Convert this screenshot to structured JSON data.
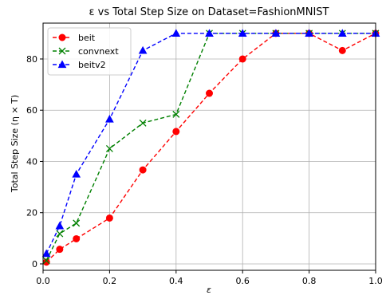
{
  "chart_data": {
    "type": "line",
    "title": "ε vs Total Step Size on Dataset=FashionMNIST",
    "xlabel": "ε",
    "ylabel": "Total Step Size (η × T)",
    "xlim": [
      0.0,
      1.0
    ],
    "ylim": [
      -2.5,
      94
    ],
    "xticks": [
      0.0,
      0.2,
      0.4,
      0.6,
      0.8,
      1.0
    ],
    "xtick_labels": [
      "0.0",
      "0.2",
      "0.4",
      "0.6",
      "0.8",
      "1.0"
    ],
    "yticks": [
      0,
      20,
      40,
      60,
      80
    ],
    "ytick_labels": [
      "0",
      "20",
      "40",
      "60",
      "80"
    ],
    "grid": true,
    "legend_position": "top-left",
    "series": [
      {
        "name": "beit",
        "color": "#ff0000",
        "marker": "circle",
        "x": [
          0.01,
          0.05,
          0.1,
          0.2,
          0.3,
          0.4,
          0.5,
          0.6,
          0.7,
          0.8,
          0.9,
          1.0
        ],
        "y": [
          0.7,
          5.7,
          9.8,
          17.9,
          36.7,
          51.7,
          66.6,
          80.0,
          90.0,
          90.0,
          83.3,
          90.0
        ]
      },
      {
        "name": "convnext",
        "color": "#008000",
        "marker": "x",
        "x": [
          0.01,
          0.05,
          0.1,
          0.2,
          0.3,
          0.4,
          0.5,
          0.6,
          0.7,
          0.8,
          0.9,
          1.0
        ],
        "y": [
          1.3,
          11.8,
          15.9,
          45.0,
          55.0,
          58.4,
          90.0,
          90.0,
          90.0,
          90.0,
          90.0,
          90.0
        ]
      },
      {
        "name": "beitv2",
        "color": "#0000ff",
        "marker": "triangle",
        "x": [
          0.01,
          0.05,
          0.1,
          0.2,
          0.3,
          0.4,
          0.5,
          0.6,
          0.7,
          0.8,
          0.9,
          1.0
        ],
        "y": [
          4.0,
          14.8,
          35.0,
          56.5,
          83.3,
          90.0,
          90.0,
          90.0,
          90.0,
          90.0,
          90.0,
          90.0
        ]
      }
    ]
  }
}
